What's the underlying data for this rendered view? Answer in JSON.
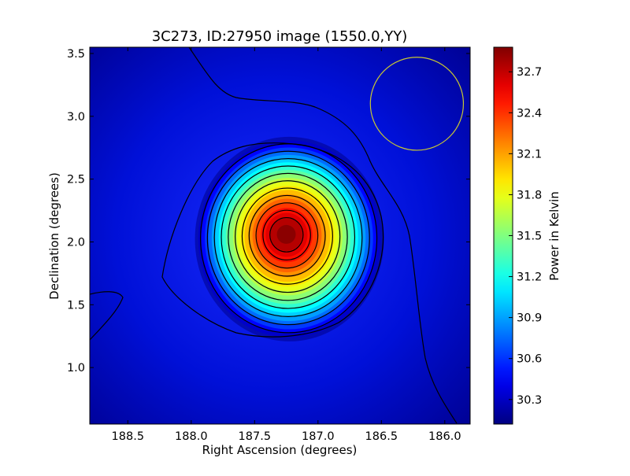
{
  "chart_data": {
    "type": "heatmap",
    "title": "3C273, ID:27950 image (1550.0,YY)",
    "xlabel": "Right Ascension (degrees)",
    "ylabel": "Declination (degrees)",
    "colorbar_label": "Power in Kelvin",
    "xlim": [
      188.8,
      185.8
    ],
    "ylim": [
      0.55,
      3.55
    ],
    "x_inverted": true,
    "xticks": [
      188.5,
      188.0,
      187.5,
      187.0,
      186.5,
      186.0
    ],
    "xtick_labels": [
      "188.5",
      "188.0",
      "187.5",
      "187.0",
      "186.5",
      "186.0"
    ],
    "yticks": [
      1.0,
      1.5,
      2.0,
      2.5,
      3.0,
      3.5
    ],
    "ytick_labels": [
      "1.0",
      "1.5",
      "2.0",
      "2.5",
      "3.0",
      "3.5"
    ],
    "colorbar_range": [
      30.12,
      32.88
    ],
    "colorbar_ticks": [
      30.3,
      30.6,
      30.9,
      31.2,
      31.5,
      31.8,
      32.1,
      32.4,
      32.7
    ],
    "colorbar_tick_labels": [
      "30.3",
      "30.6",
      "30.9",
      "31.2",
      "31.5",
      "31.8",
      "32.1",
      "32.4",
      "32.7"
    ],
    "colormap": "jet",
    "source_peak": {
      "ra": 187.25,
      "dec": 2.06,
      "value": 32.85
    },
    "background_value": 30.15,
    "beam_circle": {
      "ra": 186.22,
      "dec": 3.1,
      "radius_deg": 0.37,
      "color": "#c8c832"
    },
    "contour_color": "#000000",
    "grid": false
  }
}
